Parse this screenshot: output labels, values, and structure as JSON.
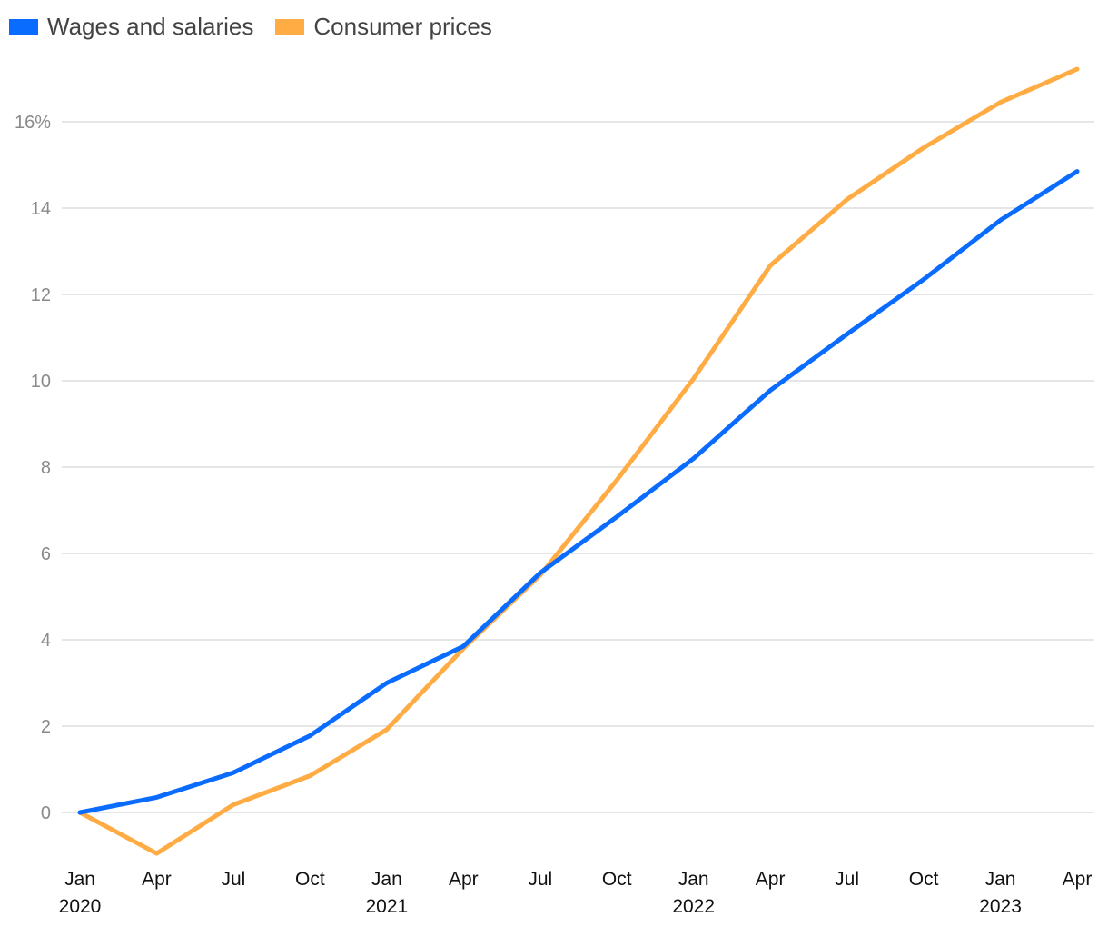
{
  "chart_data": {
    "type": "line",
    "title": "",
    "xlabel": "",
    "ylabel": "",
    "x": [
      "Jan 2020",
      "Apr 2020",
      "Jul 2020",
      "Oct 2020",
      "Jan 2021",
      "Apr 2021",
      "Jul 2021",
      "Oct 2021",
      "Jan 2022",
      "Apr 2022",
      "Jul 2022",
      "Oct 2022",
      "Jan 2023",
      "Apr 2023"
    ],
    "x_tick_labels": [
      {
        "month": "Jan",
        "year": "2020"
      },
      {
        "month": "Apr",
        "year": ""
      },
      {
        "month": "Jul",
        "year": ""
      },
      {
        "month": "Oct",
        "year": ""
      },
      {
        "month": "Jan",
        "year": "2021"
      },
      {
        "month": "Apr",
        "year": ""
      },
      {
        "month": "Jul",
        "year": ""
      },
      {
        "month": "Oct",
        "year": ""
      },
      {
        "month": "Jan",
        "year": "2022"
      },
      {
        "month": "Apr",
        "year": ""
      },
      {
        "month": "Jul",
        "year": ""
      },
      {
        "month": "Oct",
        "year": ""
      },
      {
        "month": "Jan",
        "year": "2023"
      },
      {
        "month": "Apr",
        "year": ""
      }
    ],
    "y_ticks": [
      0,
      2,
      4,
      6,
      8,
      10,
      12,
      14,
      16
    ],
    "y_tick_labels": [
      "0",
      "2",
      "4",
      "6",
      "8",
      "10",
      "12",
      "14",
      "16%"
    ],
    "ylim": [
      -1.3,
      17.9
    ],
    "grid": true,
    "legend_position": "top-left",
    "series": [
      {
        "name": "Wages and salaries",
        "color": "#0a6cff",
        "values": [
          0,
          0.35,
          0.92,
          1.78,
          3.0,
          3.85,
          5.55,
          6.85,
          8.2,
          9.78,
          11.08,
          12.35,
          13.72,
          14.85
        ]
      },
      {
        "name": "Consumer prices",
        "color": "#ffac45",
        "values": [
          0,
          -0.95,
          0.18,
          0.85,
          1.92,
          3.8,
          5.5,
          7.7,
          10.05,
          12.67,
          14.2,
          15.4,
          16.45,
          17.22
        ]
      }
    ]
  }
}
